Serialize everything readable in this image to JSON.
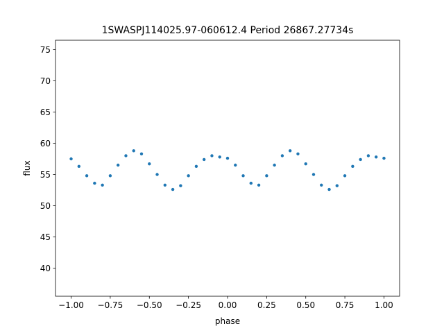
{
  "chart_data": {
    "type": "scatter",
    "title": "1SWASPJ114025.97-060612.4 Period 26867.27734s",
    "xlabel": "phase",
    "ylabel": "flux",
    "xlim": [
      -1.1,
      1.1
    ],
    "ylim": [
      35.5,
      76.5
    ],
    "xticks": [
      -1.0,
      -0.75,
      -0.5,
      -0.25,
      0.0,
      0.25,
      0.5,
      0.75,
      1.0
    ],
    "xtick_labels": [
      "−1.00",
      "−0.75",
      "−0.50",
      "−0.25",
      "0.00",
      "0.25",
      "0.50",
      "0.75",
      "1.00"
    ],
    "yticks": [
      40,
      45,
      50,
      55,
      60,
      65,
      70,
      75
    ],
    "ytick_labels": [
      "40",
      "45",
      "50",
      "55",
      "60",
      "65",
      "70",
      "75"
    ],
    "grid": false,
    "marker_color": "#1f77b4",
    "series": [
      {
        "x": [
          -1.0,
          -0.95,
          -0.9,
          -0.85,
          -0.8,
          -0.75,
          -0.7,
          -0.65,
          -0.6,
          -0.55,
          -0.5,
          -0.45,
          -0.4,
          -0.35,
          -0.3,
          -0.25,
          -0.2,
          -0.15,
          -0.1,
          -0.05,
          0.0,
          0.05,
          0.1,
          0.15,
          0.2,
          0.25,
          0.3,
          0.35,
          0.4,
          0.45,
          0.5,
          0.55,
          0.6,
          0.65,
          0.7,
          0.75,
          0.8,
          0.85,
          0.9,
          0.95,
          1.0
        ],
        "y": [
          57.5,
          56.3,
          54.8,
          53.6,
          53.3,
          54.8,
          56.5,
          58.0,
          58.8,
          58.3,
          56.7,
          55.0,
          53.3,
          52.6,
          53.2,
          54.8,
          56.3,
          57.4,
          58.0,
          57.8,
          57.6,
          56.5,
          54.8,
          53.6,
          53.3,
          54.8,
          56.5,
          58.0,
          58.8,
          58.3,
          56.7,
          55.0,
          53.3,
          52.6,
          53.2,
          54.8,
          56.3,
          57.4,
          58.0,
          57.8,
          57.6
        ]
      }
    ]
  }
}
